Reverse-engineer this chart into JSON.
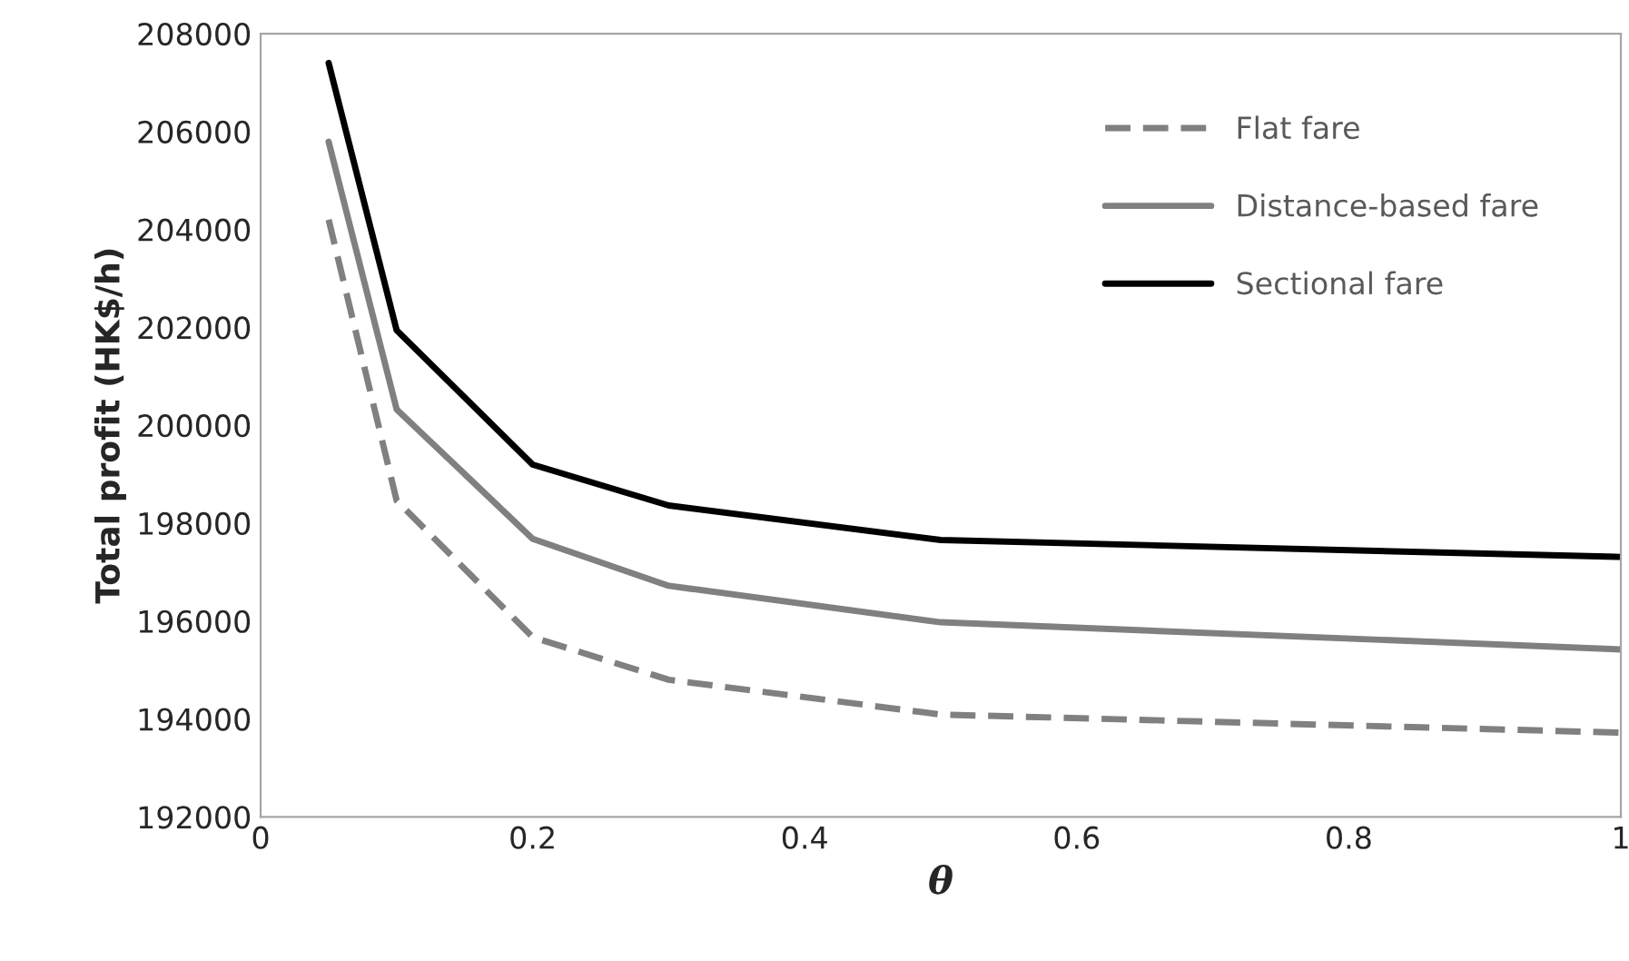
{
  "chart_data": {
    "type": "line",
    "xlabel": "θ",
    "ylabel": "Total profit (HK$/h)",
    "x": [
      0.05,
      0.1,
      0.2,
      0.3,
      0.5,
      1.0
    ],
    "series": [
      {
        "name": "Flat fare",
        "color": "#808080",
        "line_style": "dashed",
        "values": [
          204200,
          198460,
          195670,
          194800,
          194090,
          193720
        ]
      },
      {
        "name": "Distance-based fare",
        "color": "#808080",
        "line_style": "solid",
        "values": [
          205790,
          200325,
          197680,
          196720,
          195975,
          195420
        ]
      },
      {
        "name": "Sectional fare",
        "color": "#000000",
        "line_style": "solid",
        "values": [
          207400,
          201940,
          199195,
          198360,
          197655,
          197310
        ]
      }
    ],
    "xlim": [
      0,
      1
    ],
    "xticks": [
      0,
      0.2,
      0.4,
      0.6,
      0.8,
      1
    ],
    "ylim": [
      192000,
      208000
    ],
    "yticks": [
      192000,
      194000,
      196000,
      198000,
      200000,
      202000,
      204000,
      206000,
      208000
    ],
    "grid": false,
    "legend": "top right",
    "marker": "none"
  }
}
